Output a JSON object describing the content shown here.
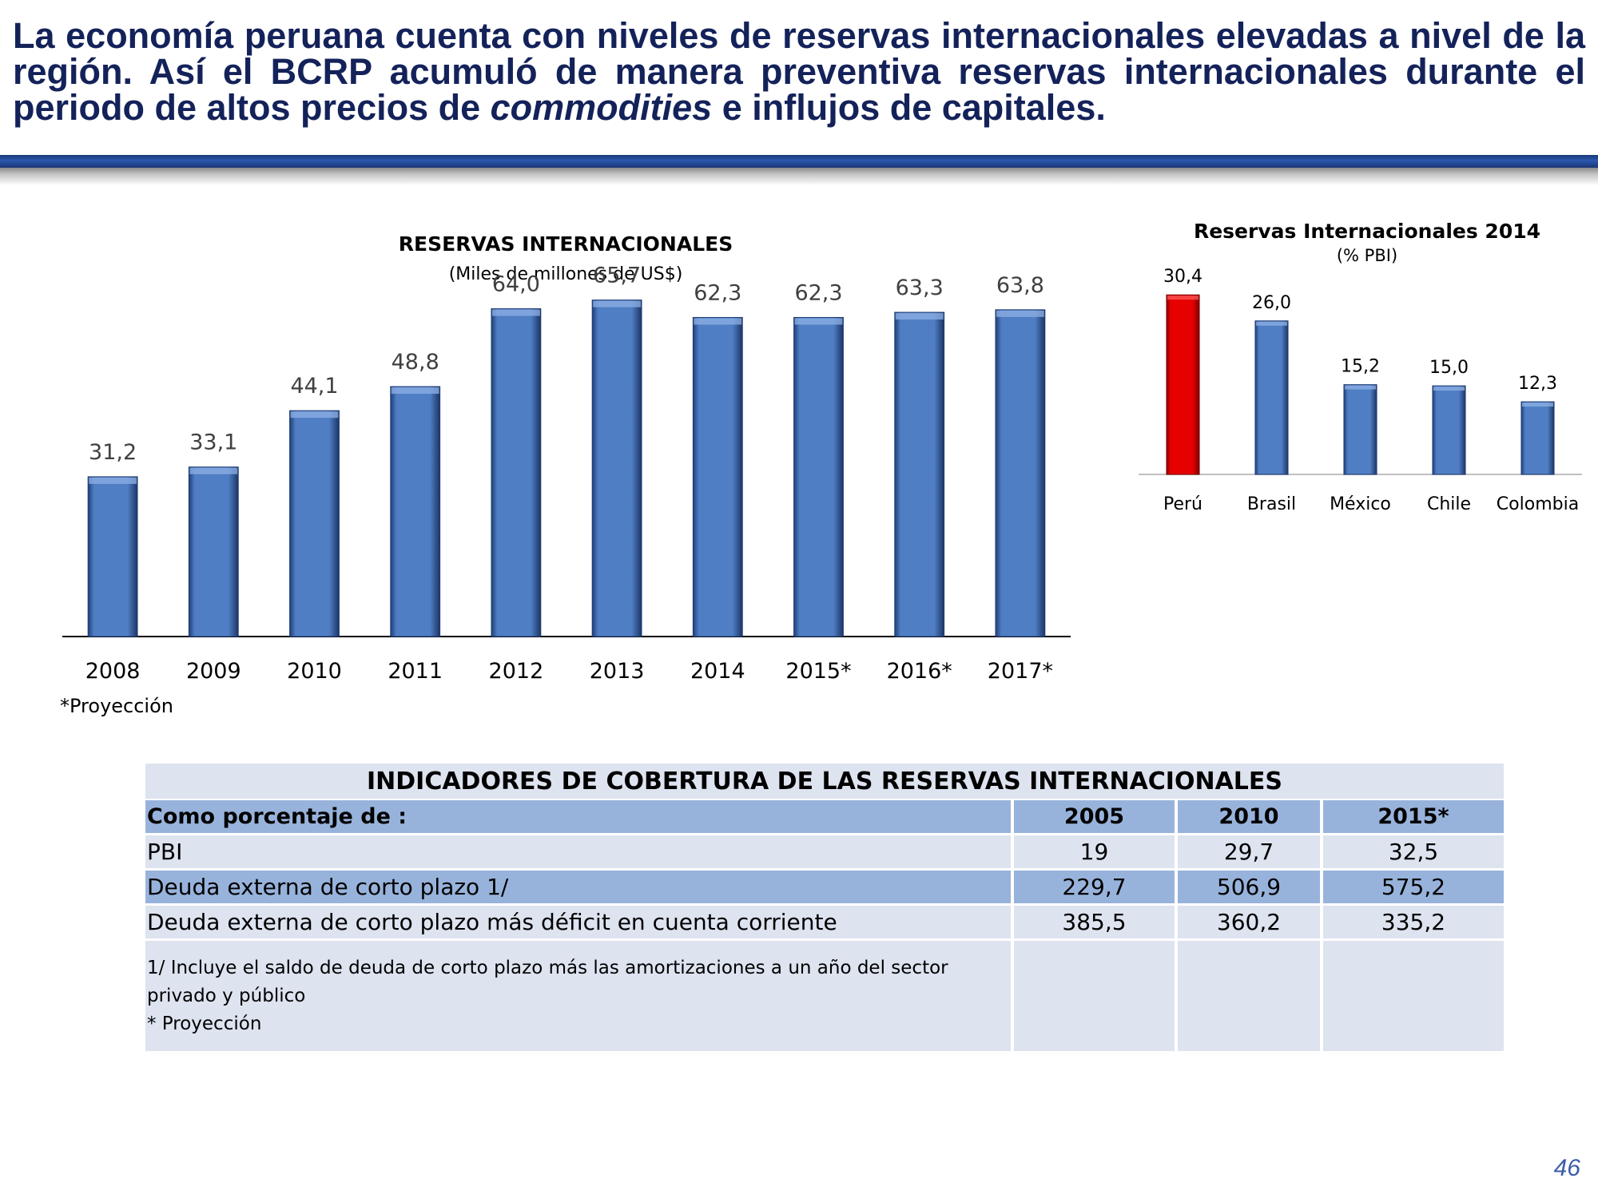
{
  "header": {
    "title_part1": "La economía peruana cuenta con niveles de reservas internacionales elevadas a nivel de la región. Así el BCRP acumuló de manera preventiva reservas internacionales durante el periodo de altos precios de ",
    "title_emphasis": "commodities",
    "title_part2": " e influjos de capitales."
  },
  "chart_data": [
    {
      "type": "bar",
      "title": "RESERVAS INTERNACIONALES",
      "subtitle": "(Miles de millones de US$)",
      "categories": [
        "2008",
        "2009",
        "2010",
        "2011",
        "2012",
        "2013",
        "2014",
        "2015*",
        "2016*",
        "2017*"
      ],
      "values": [
        31.2,
        33.1,
        44.1,
        48.8,
        64.0,
        65.7,
        62.3,
        62.3,
        63.3,
        63.8
      ],
      "value_labels": [
        "31,2",
        "33,1",
        "44,1",
        "48,8",
        "64,0",
        "65,7",
        "62,3",
        "62,3",
        "63,3",
        "63,8"
      ],
      "ylim": [
        0,
        75
      ],
      "grid": false,
      "bar_color": "#4f7ec4",
      "note": "*Proyección"
    },
    {
      "type": "bar",
      "title": "Reservas Internacionales 2014",
      "subtitle": "(% PBI)",
      "categories": [
        "Perú",
        "Brasil",
        "México",
        "Chile",
        "Colombia"
      ],
      "values": [
        30.4,
        26.0,
        15.2,
        15.0,
        12.3
      ],
      "value_labels": [
        "30,4",
        "26,0",
        "15,2",
        "15,0",
        "12,3"
      ],
      "ylim": [
        0,
        33
      ],
      "grid": false,
      "bar_colors": [
        "#e60000",
        "#4f7ec4",
        "#4f7ec4",
        "#4f7ec4",
        "#4f7ec4"
      ]
    }
  ],
  "table": {
    "title": "INDICADORES DE COBERTURA DE LAS RESERVAS INTERNACIONALES",
    "header_label": "Como porcentaje de :",
    "columns": [
      "2005",
      "2010",
      "2015*"
    ],
    "rows": [
      {
        "label": "PBI",
        "values": [
          "19",
          "29,7",
          "32,5"
        ]
      },
      {
        "label": "Deuda externa de corto plazo 1/",
        "values": [
          "229,7",
          "506,9",
          "575,2"
        ]
      },
      {
        "label": "Deuda externa de corto plazo más déficit en cuenta corriente",
        "values": [
          "385,5",
          "360,2",
          "335,2"
        ]
      }
    ],
    "notes": [
      "1/ Incluye el saldo de deuda de corto plazo más las amortizaciones a un año del sector",
      "privado y público",
      "* Proyección"
    ]
  },
  "page_number": "46"
}
